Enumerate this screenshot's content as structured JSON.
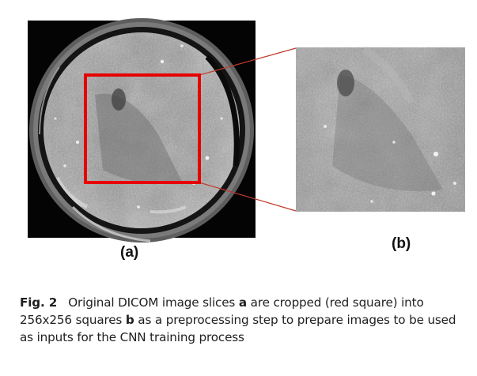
{
  "figure": {
    "panel_a_label": "(a)",
    "panel_b_label": "(b)",
    "crop_box_color": "#e60000",
    "connector_color": "#c0392b"
  },
  "caption": {
    "figure_number": "Fig. 2",
    "part1": "Original DICOM image slices ",
    "ref_a": "a",
    "part2": " are cropped (red square) into 256x256 squares ",
    "ref_b": "b",
    "part3": " as a preprocessing step to prepare images to be used as inputs for the CNN training process"
  }
}
